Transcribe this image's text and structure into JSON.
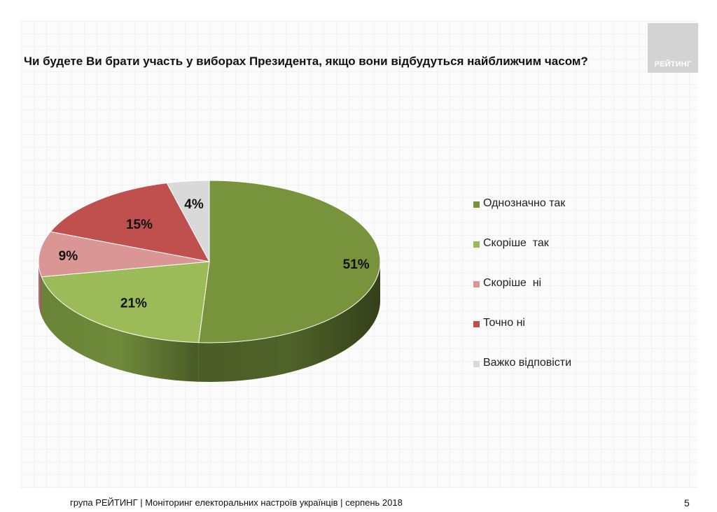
{
  "title": "Чи будете Ви брати участь у виборах Президента, якщо вони відбудуться найближчим часом?",
  "logo": {
    "text": "РЕЙТИНГ"
  },
  "footer": {
    "text": "група РЕЙТИНГ |  Моніторинг електоральних настроїв українців | серпень  2018",
    "page": "5"
  },
  "chart_data": {
    "type": "pie",
    "title": "Чи будете Ви брати участь у виборах Президента, якщо вони відбудуться найближчим часом?",
    "legend_position": "right",
    "grid": false,
    "categories": [
      "Однозначно так",
      "Скоріше  так",
      "Скоріше  ні",
      "Точно ні",
      "Важко відповісти"
    ],
    "values": [
      51,
      21,
      9,
      15,
      4
    ],
    "labels": [
      "51%",
      "21%",
      "9%",
      "15%",
      "4%"
    ],
    "colors": [
      "#77933c",
      "#9bbb59",
      "#d99694",
      "#c0504d",
      "#d9d9d9"
    ],
    "side_colors": [
      "#4f6228",
      "#6f8a3a",
      "#b06f6d",
      "#8a3532",
      "#a6a6a6"
    ]
  }
}
